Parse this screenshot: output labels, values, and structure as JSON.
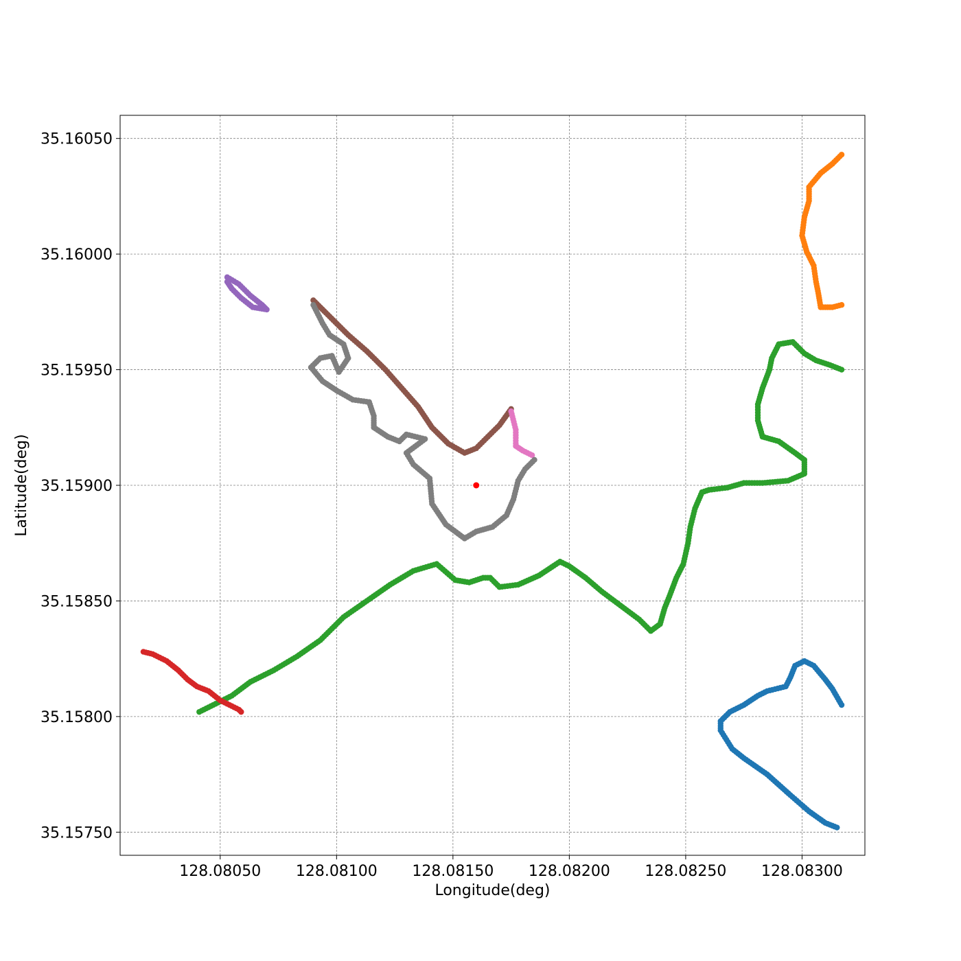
{
  "chart_data": {
    "type": "scatter",
    "title": "",
    "xlabel": "Longitude(deg)",
    "ylabel": "Latitude(deg)",
    "xlim": [
      128.08007,
      128.08327
    ],
    "ylim": [
      35.1574,
      35.1606
    ],
    "x_ticks": [
      {
        "value": 128.0805,
        "label": "128.08050"
      },
      {
        "value": 128.081,
        "label": "128.08100"
      },
      {
        "value": 128.0815,
        "label": "128.08150"
      },
      {
        "value": 128.082,
        "label": "128.08200"
      },
      {
        "value": 128.0825,
        "label": "128.08250"
      },
      {
        "value": 128.083,
        "label": "128.08300"
      }
    ],
    "y_ticks": [
      {
        "value": 35.1575,
        "label": "35.15750"
      },
      {
        "value": 35.158,
        "label": "35.15800"
      },
      {
        "value": 35.1585,
        "label": "35.15850"
      },
      {
        "value": 35.159,
        "label": "35.15900"
      },
      {
        "value": 35.1595,
        "label": "35.15950"
      },
      {
        "value": 35.16,
        "label": "35.16000"
      },
      {
        "value": 35.1605,
        "label": "35.16050"
      }
    ],
    "grid": true,
    "series": [
      {
        "color": "#1f77b4",
        "points": [
          [
            128.08317,
            35.15805
          ],
          [
            128.08313,
            35.15812
          ],
          [
            128.0831,
            35.15816
          ],
          [
            128.08305,
            35.15822
          ],
          [
            128.08301,
            35.15824
          ],
          [
            128.08297,
            35.15822
          ],
          [
            128.08295,
            35.15817
          ],
          [
            128.08293,
            35.15813
          ],
          [
            128.08285,
            35.15811
          ],
          [
            128.08281,
            35.15809
          ],
          [
            128.08275,
            35.15805
          ],
          [
            128.08269,
            35.15802
          ],
          [
            128.08265,
            35.15798
          ],
          [
            128.08265,
            35.15794
          ],
          [
            128.0827,
            35.15786
          ],
          [
            128.08275,
            35.15782
          ],
          [
            128.08285,
            35.15775
          ],
          [
            128.08295,
            35.15766
          ],
          [
            128.08303,
            35.15759
          ],
          [
            128.0831,
            35.15754
          ],
          [
            128.08315,
            35.15752
          ]
        ]
      },
      {
        "color": "#ff7f0e",
        "points": [
          [
            128.08317,
            35.16043
          ],
          [
            128.08313,
            35.16039
          ],
          [
            128.08308,
            35.16035
          ],
          [
            128.08303,
            35.16029
          ],
          [
            128.08303,
            35.16023
          ],
          [
            128.08301,
            35.16016
          ],
          [
            128.083,
            35.16008
          ],
          [
            128.08302,
            35.16001
          ],
          [
            128.08305,
            35.15995
          ],
          [
            128.08306,
            35.15988
          ],
          [
            128.08307,
            35.15983
          ],
          [
            128.08308,
            35.15977
          ],
          [
            128.08313,
            35.15977
          ],
          [
            128.08317,
            35.15978
          ]
        ]
      },
      {
        "color": "#2ca02c",
        "points": [
          [
            128.08317,
            35.1595
          ],
          [
            128.08312,
            35.15952
          ],
          [
            128.08306,
            35.15954
          ],
          [
            128.08301,
            35.15957
          ],
          [
            128.08296,
            35.15962
          ],
          [
            128.0829,
            35.15961
          ],
          [
            128.08287,
            35.15955
          ],
          [
            128.08286,
            35.1595
          ],
          [
            128.08283,
            35.15942
          ],
          [
            128.08281,
            35.15935
          ],
          [
            128.08281,
            35.15928
          ],
          [
            128.08283,
            35.15921
          ],
          [
            128.0829,
            35.15919
          ],
          [
            128.08297,
            35.15914
          ],
          [
            128.08301,
            35.15911
          ],
          [
            128.08301,
            35.15905
          ],
          [
            128.08294,
            35.15902
          ],
          [
            128.08283,
            35.15901
          ],
          [
            128.08275,
            35.15901
          ],
          [
            128.08268,
            35.15899
          ],
          [
            128.0826,
            35.15898
          ],
          [
            128.08257,
            35.15897
          ],
          [
            128.08254,
            35.1589
          ],
          [
            128.08252,
            35.15882
          ],
          [
            128.08251,
            35.15875
          ],
          [
            128.08249,
            35.15866
          ],
          [
            128.08246,
            35.1586
          ],
          [
            128.08243,
            35.15852
          ],
          [
            128.08241,
            35.15847
          ],
          [
            128.08239,
            35.1584
          ],
          [
            128.08235,
            35.15837
          ],
          [
            128.0823,
            35.15842
          ],
          [
            128.08222,
            35.15848
          ],
          [
            128.08214,
            35.15854
          ],
          [
            128.08207,
            35.1586
          ],
          [
            128.082,
            35.15865
          ],
          [
            128.08196,
            35.15867
          ],
          [
            128.08187,
            35.15861
          ],
          [
            128.08178,
            35.15857
          ],
          [
            128.0817,
            35.15856
          ],
          [
            128.08166,
            35.1586
          ],
          [
            128.08163,
            35.1586
          ],
          [
            128.08157,
            35.15858
          ],
          [
            128.08151,
            35.15859
          ],
          [
            128.08143,
            35.15866
          ],
          [
            128.08133,
            35.15863
          ],
          [
            128.08123,
            35.15857
          ],
          [
            128.08113,
            35.1585
          ],
          [
            128.08103,
            35.15843
          ],
          [
            128.08093,
            35.15833
          ],
          [
            128.08083,
            35.15826
          ],
          [
            128.08073,
            35.1582
          ],
          [
            128.08063,
            35.15815
          ],
          [
            128.08055,
            35.15809
          ],
          [
            128.08045,
            35.15804
          ],
          [
            128.08041,
            35.15802
          ]
        ]
      },
      {
        "color": "#d62728",
        "points": [
          [
            128.08017,
            35.15828
          ],
          [
            128.08021,
            35.15827
          ],
          [
            128.08027,
            35.15824
          ],
          [
            128.08032,
            35.1582
          ],
          [
            128.08036,
            35.15816
          ],
          [
            128.0804,
            35.15813
          ],
          [
            128.08045,
            35.15811
          ],
          [
            128.0805,
            35.15807
          ],
          [
            128.08054,
            35.15805
          ],
          [
            128.08058,
            35.15803
          ],
          [
            128.08059,
            35.15802
          ]
        ]
      },
      {
        "color": "#9467bd",
        "points": [
          [
            128.08053,
            35.1599
          ],
          [
            128.08058,
            35.15987
          ],
          [
            128.08063,
            35.15982
          ],
          [
            128.08068,
            35.15978
          ],
          [
            128.0807,
            35.15976
          ],
          [
            128.08064,
            35.15977
          ],
          [
            128.08059,
            35.15981
          ],
          [
            128.08055,
            35.15985
          ],
          [
            128.08053,
            35.15988
          ]
        ]
      },
      {
        "color": "#8c564b",
        "points": [
          [
            128.0809,
            35.1598
          ],
          [
            128.08097,
            35.15973
          ],
          [
            128.08105,
            35.15965
          ],
          [
            128.08113,
            35.15958
          ],
          [
            128.08121,
            35.1595
          ],
          [
            128.08128,
            35.15942
          ],
          [
            128.08135,
            35.15934
          ],
          [
            128.08141,
            35.15925
          ],
          [
            128.08148,
            35.15918
          ],
          [
            128.08155,
            35.15914
          ],
          [
            128.0816,
            35.15916
          ],
          [
            128.08165,
            35.15921
          ],
          [
            128.0817,
            35.15926
          ],
          [
            128.08175,
            35.15933
          ]
        ]
      },
      {
        "color": "#e377c2",
        "points": [
          [
            128.08175,
            35.15932
          ],
          [
            128.08177,
            35.15924
          ],
          [
            128.08177,
            35.15917
          ],
          [
            128.0818,
            35.15915
          ],
          [
            128.08184,
            35.15913
          ]
        ]
      },
      {
        "color": "#7f7f7f",
        "points": [
          [
            128.0809,
            35.15978
          ],
          [
            128.08094,
            35.1597
          ],
          [
            128.08097,
            35.15965
          ],
          [
            128.08103,
            35.15961
          ],
          [
            128.08105,
            35.15955
          ],
          [
            128.08101,
            35.15949
          ],
          [
            128.08098,
            35.15956
          ],
          [
            128.08093,
            35.15955
          ],
          [
            128.08089,
            35.15951
          ],
          [
            128.08094,
            35.15945
          ],
          [
            128.081,
            35.15941
          ],
          [
            128.08107,
            35.15937
          ],
          [
            128.08114,
            35.15936
          ],
          [
            128.08116,
            35.1593
          ],
          [
            128.08116,
            35.15925
          ],
          [
            128.08122,
            35.15921
          ],
          [
            128.08127,
            35.15919
          ],
          [
            128.0813,
            35.15922
          ],
          [
            128.08138,
            35.1592
          ],
          [
            128.0813,
            35.15914
          ],
          [
            128.08133,
            35.15909
          ],
          [
            128.0814,
            35.15903
          ],
          [
            128.08141,
            35.15892
          ],
          [
            128.08147,
            35.15883
          ],
          [
            128.08155,
            35.15877
          ],
          [
            128.0816,
            35.1588
          ],
          [
            128.08167,
            35.15882
          ],
          [
            128.08173,
            35.15887
          ],
          [
            128.08176,
            35.15894
          ],
          [
            128.08178,
            35.15902
          ],
          [
            128.08181,
            35.15907
          ],
          [
            128.08185,
            35.15911
          ]
        ]
      },
      {
        "color": "#ff0000",
        "marker": "single",
        "points": [
          [
            128.0816,
            35.159
          ]
        ]
      }
    ]
  }
}
